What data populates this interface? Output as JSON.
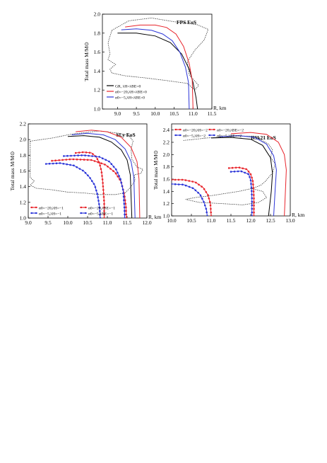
{
  "chart_data": [
    {
      "type": "line",
      "id": "fps",
      "title": "FPS EoS",
      "xlabel": "R, km",
      "ylabel": "Total mass M/M⊙",
      "xlim": [
        8.6,
        11.5
      ],
      "ylim": [
        1.0,
        2.0
      ],
      "xticks": [
        "9.0",
        "9.5",
        "10.0",
        "10.5",
        "11.0",
        "11.5"
      ],
      "yticks": [
        "1.0",
        "1.2",
        "1.4",
        "1.6",
        "1.8",
        "2.0"
      ],
      "legend": {
        "position": "bottom-left",
        "entries": [
          {
            "label": "GR, λH=λBE=0",
            "color": "#000000"
          },
          {
            "label": "α0=−20,λH=λBE=0",
            "color": "#e8242b"
          },
          {
            "label": "α0=−5,λH=λBE=0",
            "color": "#2b35d8"
          }
        ]
      },
      "series": [
        {
          "color": "#000000",
          "marker": false,
          "points": [
            [
              9.0,
              1.8
            ],
            [
              9.5,
              1.8
            ],
            [
              10.0,
              1.77
            ],
            [
              10.4,
              1.7
            ],
            [
              10.7,
              1.58
            ],
            [
              10.9,
              1.42
            ],
            [
              11.0,
              1.28
            ],
            [
              11.08,
              1.12
            ],
            [
              11.12,
              1.0
            ]
          ]
        },
        {
          "color": "#e8242b",
          "marker": false,
          "points": [
            [
              9.2,
              1.865
            ],
            [
              9.6,
              1.885
            ],
            [
              10.0,
              1.885
            ],
            [
              10.3,
              1.86
            ],
            [
              10.55,
              1.79
            ],
            [
              10.75,
              1.66
            ],
            [
              10.9,
              1.48
            ],
            [
              10.98,
              1.3
            ],
            [
              11.0,
              1.0
            ]
          ]
        },
        {
          "color": "#2b35d8",
          "marker": false,
          "points": [
            [
              9.1,
              1.835
            ],
            [
              9.5,
              1.845
            ],
            [
              9.9,
              1.83
            ],
            [
              10.2,
              1.79
            ],
            [
              10.45,
              1.72
            ],
            [
              10.65,
              1.6
            ],
            [
              10.8,
              1.44
            ],
            [
              10.88,
              1.28
            ],
            [
              10.9,
              1.0
            ]
          ]
        }
      ],
      "contour": [
        [
          8.85,
          1.83
        ],
        [
          9.3,
          1.93
        ],
        [
          9.9,
          1.96
        ],
        [
          10.5,
          1.92
        ],
        [
          11.1,
          1.89
        ],
        [
          11.4,
          1.84
        ],
        [
          11.3,
          1.73
        ],
        [
          11.05,
          1.62
        ],
        [
          10.85,
          1.5
        ],
        [
          10.9,
          1.36
        ],
        [
          11.15,
          1.25
        ],
        [
          11.05,
          1.2
        ],
        [
          10.85,
          1.27
        ],
        [
          10.3,
          1.3
        ],
        [
          9.7,
          1.33
        ],
        [
          9.2,
          1.35
        ],
        [
          8.85,
          1.38
        ],
        [
          8.8,
          1.42
        ],
        [
          8.95,
          1.47
        ],
        [
          8.75,
          1.52
        ],
        [
          8.8,
          1.58
        ],
        [
          8.75,
          1.7
        ],
        [
          8.85,
          1.83
        ]
      ]
    },
    {
      "type": "line",
      "id": "sly",
      "title": "SLy EoS",
      "xlabel": "R, km",
      "ylabel": "Total mass M/M⊙",
      "xlim": [
        9.0,
        12.0
      ],
      "ylim": [
        1.0,
        2.2
      ],
      "xticks": [
        "9.0",
        "9.5",
        "10.0",
        "10.5",
        "11.0",
        "11.5",
        "12.0"
      ],
      "yticks": [
        "1.0",
        "1.2",
        "1.4",
        "1.6",
        "1.8",
        "2.0",
        "2.2"
      ],
      "legend": {
        "position": "bottom-left",
        "entries": [
          {
            "label": "α0=−20,λH=−1",
            "color": "#e8242b"
          },
          {
            "label": "α0=−20,λBE=−1",
            "color": "#e8242b"
          },
          {
            "label": "α0=−5,λH=−1",
            "color": "#2b35d8"
          },
          {
            "label": "α0=−5,λBE=−1",
            "color": "#2b35d8"
          }
        ]
      },
      "series": [
        {
          "color": "#000000",
          "marker": false,
          "points": [
            [
              10.0,
              2.04
            ],
            [
              10.4,
              2.05
            ],
            [
              10.8,
              2.03
            ],
            [
              11.1,
              1.97
            ],
            [
              11.35,
              1.87
            ],
            [
              11.5,
              1.74
            ],
            [
              11.58,
              1.55
            ],
            [
              11.62,
              1.0
            ]
          ]
        },
        {
          "color": "#e8242b",
          "marker": false,
          "points": [
            [
              10.2,
              2.1
            ],
            [
              10.6,
              2.12
            ],
            [
              11.0,
              2.1
            ],
            [
              11.35,
              2.03
            ],
            [
              11.6,
              1.9
            ],
            [
              11.75,
              1.72
            ],
            [
              11.8,
              1.5
            ],
            [
              11.82,
              1.0
            ]
          ]
        },
        {
          "color": "#2b35d8",
          "marker": false,
          "points": [
            [
              10.1,
              2.06
            ],
            [
              10.5,
              2.08
            ],
            [
              10.9,
              2.06
            ],
            [
              11.2,
              2.0
            ],
            [
              11.45,
              1.88
            ],
            [
              11.6,
              1.72
            ],
            [
              11.67,
              1.52
            ],
            [
              11.7,
              1.0
            ]
          ]
        },
        {
          "color": "#e8242b",
          "marker": true,
          "points": [
            [
              10.2,
              1.83
            ],
            [
              10.4,
              1.84
            ],
            [
              10.6,
              1.83
            ],
            [
              10.72,
              1.78
            ],
            [
              10.8,
              1.7
            ],
            [
              10.85,
              1.6
            ],
            [
              10.88,
              1.48
            ],
            [
              10.9,
              1.35
            ],
            [
              10.92,
              1.2
            ],
            [
              10.92,
              1.0
            ]
          ]
        },
        {
          "color": "#2b35d8",
          "marker": true,
          "points": [
            [
              9.45,
              1.69
            ],
            [
              9.8,
              1.7
            ],
            [
              10.15,
              1.67
            ],
            [
              10.4,
              1.6
            ],
            [
              10.55,
              1.52
            ],
            [
              10.68,
              1.42
            ],
            [
              10.75,
              1.3
            ],
            [
              10.8,
              1.15
            ],
            [
              10.82,
              1.0
            ]
          ]
        },
        {
          "color": "#e8242b",
          "marker": true,
          "points": [
            [
              9.6,
              1.73
            ],
            [
              10.1,
              1.75
            ],
            [
              10.6,
              1.74
            ],
            [
              10.95,
              1.68
            ],
            [
              11.2,
              1.58
            ],
            [
              11.35,
              1.46
            ],
            [
              11.43,
              1.3
            ],
            [
              11.47,
              1.15
            ],
            [
              11.48,
              1.0
            ]
          ]
        },
        {
          "color": "#2b35d8",
          "marker": true,
          "points": [
            [
              9.9,
              1.79
            ],
            [
              10.4,
              1.8
            ],
            [
              10.8,
              1.78
            ],
            [
              11.05,
              1.72
            ],
            [
              11.22,
              1.62
            ],
            [
              11.33,
              1.5
            ],
            [
              11.4,
              1.35
            ],
            [
              11.43,
              1.15
            ],
            [
              11.44,
              1.0
            ]
          ]
        }
      ],
      "contour": [
        [
          9.05,
          1.98
        ],
        [
          9.6,
          2.02
        ],
        [
          10.1,
          2.07
        ],
        [
          10.8,
          2.11
        ],
        [
          11.3,
          2.08
        ],
        [
          11.55,
          2.05
        ],
        [
          11.65,
          1.98
        ],
        [
          11.6,
          1.88
        ],
        [
          11.62,
          1.75
        ],
        [
          11.75,
          1.65
        ],
        [
          11.9,
          1.62
        ],
        [
          11.85,
          1.57
        ],
        [
          11.68,
          1.55
        ],
        [
          11.7,
          1.48
        ],
        [
          11.6,
          1.4
        ],
        [
          11.45,
          1.32
        ],
        [
          11.2,
          1.3
        ],
        [
          10.8,
          1.3
        ],
        [
          10.4,
          1.32
        ],
        [
          10.0,
          1.33
        ],
        [
          9.6,
          1.36
        ],
        [
          9.2,
          1.38
        ],
        [
          9.05,
          1.42
        ],
        [
          9.15,
          1.47
        ],
        [
          9.05,
          1.52
        ],
        [
          9.05,
          1.98
        ]
      ]
    },
    {
      "type": "line",
      "id": "bsk21",
      "title": "BSk21 EoS",
      "xlabel": "R, km",
      "ylabel": "Total mass M/M⊙",
      "xlim": [
        10.0,
        13.0
      ],
      "ylim": [
        1.0,
        2.5
      ],
      "xticks": [
        "10.0",
        "10.5",
        "11.0",
        "11.5",
        "12.0",
        "12.5",
        "13.0"
      ],
      "yticks": [
        "1.0",
        "1.2",
        "1.4",
        "1.6",
        "1.8",
        "2.0",
        "2.2",
        "2.4"
      ],
      "legend": {
        "position": "top-left",
        "entries": [
          {
            "label": "α0=−20,λH=−2",
            "color": "#e8242b"
          },
          {
            "label": "α0=−20,λBE=−2",
            "color": "#e8242b"
          },
          {
            "label": "α0=−5,λH=−2",
            "color": "#2b35d8"
          },
          {
            "label": "α0=−5,λBE=−2",
            "color": "#2b35d8"
          }
        ]
      },
      "series": [
        {
          "color": "#000000",
          "marker": false,
          "points": [
            [
              11.0,
              2.27
            ],
            [
              11.5,
              2.28
            ],
            [
              12.0,
              2.25
            ],
            [
              12.3,
              2.15
            ],
            [
              12.5,
              1.95
            ],
            [
              12.55,
              1.7
            ],
            [
              12.52,
              1.4
            ],
            [
              12.45,
              1.0
            ]
          ]
        },
        {
          "color": "#e8242b",
          "marker": false,
          "points": [
            [
              11.5,
              2.34
            ],
            [
              12.0,
              2.36
            ],
            [
              12.4,
              2.33
            ],
            [
              12.7,
              2.2
            ],
            [
              12.85,
              2.0
            ],
            [
              12.9,
              1.75
            ],
            [
              12.88,
              1.45
            ],
            [
              12.85,
              1.0
            ]
          ]
        },
        {
          "color": "#2b35d8",
          "marker": false,
          "points": [
            [
              11.2,
              2.29
            ],
            [
              11.7,
              2.31
            ],
            [
              12.1,
              2.28
            ],
            [
              12.4,
              2.17
            ],
            [
              12.58,
              1.98
            ],
            [
              12.65,
              1.75
            ],
            [
              12.62,
              1.45
            ],
            [
              12.58,
              1.0
            ]
          ]
        },
        {
          "color": "#e8242b",
          "marker": true,
          "points": [
            [
              11.45,
              1.78
            ],
            [
              11.7,
              1.79
            ],
            [
              11.9,
              1.76
            ],
            [
              12.0,
              1.68
            ],
            [
              12.05,
              1.58
            ],
            [
              12.07,
              1.45
            ],
            [
              12.08,
              1.3
            ],
            [
              12.08,
              1.0
            ]
          ]
        },
        {
          "color": "#2b35d8",
          "marker": true,
          "points": [
            [
              11.5,
              1.72
            ],
            [
              11.75,
              1.73
            ],
            [
              11.95,
              1.68
            ],
            [
              12.0,
              1.58
            ],
            [
              12.02,
              1.45
            ],
            [
              12.03,
              1.3
            ],
            [
              12.03,
              1.0
            ]
          ]
        },
        {
          "color": "#e8242b",
          "marker": true,
          "points": [
            [
              10.0,
              1.59
            ],
            [
              10.3,
              1.59
            ],
            [
              10.6,
              1.55
            ],
            [
              10.8,
              1.46
            ],
            [
              10.92,
              1.34
            ],
            [
              10.98,
              1.2
            ],
            [
              11.0,
              1.0
            ]
          ]
        },
        {
          "color": "#2b35d8",
          "marker": true,
          "points": [
            [
              10.0,
              1.52
            ],
            [
              10.3,
              1.51
            ],
            [
              10.55,
              1.45
            ],
            [
              10.72,
              1.35
            ],
            [
              10.82,
              1.22
            ],
            [
              10.88,
              1.1
            ],
            [
              10.9,
              1.0
            ]
          ]
        }
      ],
      "contour": [
        [
          10.3,
          2.23
        ],
        [
          10.9,
          2.27
        ],
        [
          11.6,
          2.3
        ],
        [
          12.1,
          2.3
        ],
        [
          12.45,
          2.17
        ],
        [
          12.55,
          2.08
        ],
        [
          12.5,
          1.95
        ],
        [
          12.62,
          1.85
        ],
        [
          12.55,
          1.7
        ],
        [
          12.35,
          1.55
        ],
        [
          12.25,
          1.5
        ],
        [
          12.05,
          1.45
        ],
        [
          11.7,
          1.4
        ],
        [
          11.4,
          1.37
        ],
        [
          11.0,
          1.33
        ],
        [
          10.6,
          1.3
        ],
        [
          10.35,
          1.27
        ],
        [
          10.7,
          1.22
        ],
        [
          11.3,
          1.2
        ],
        [
          11.8,
          1.18
        ],
        [
          12.2,
          1.22
        ],
        [
          12.4,
          1.3
        ],
        [
          12.3,
          1.4
        ],
        [
          12.0,
          1.45
        ]
      ]
    }
  ]
}
